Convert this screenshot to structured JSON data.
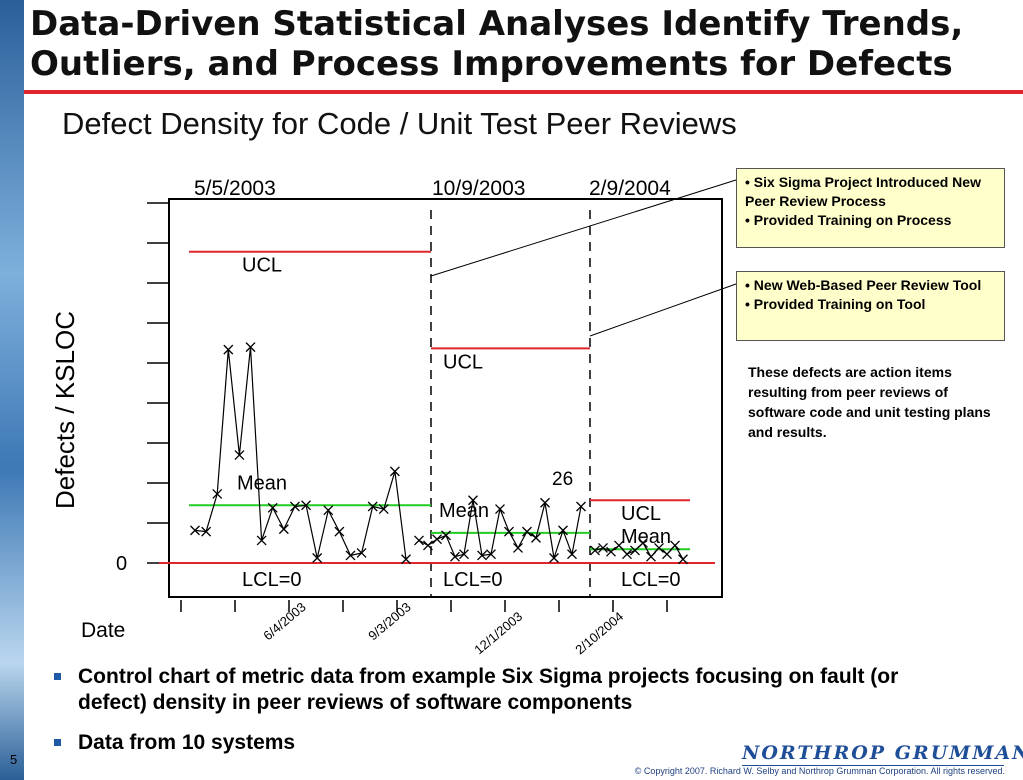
{
  "slide": {
    "title_line1": "Data-Driven Statistical Analyses Identify Trends,",
    "title_line2": "Outliers, and Process Improvements for Defects",
    "page_number": "5"
  },
  "chart_data": {
    "type": "line",
    "title": "Defect Density for Code / Unit Test Peer Reviews",
    "ylabel": "Defects / KSLOC",
    "xlabel": "Date",
    "y_tick_label": "0",
    "top_date_labels": [
      "5/5/2003",
      "10/9/2003",
      "2/9/2004"
    ],
    "x_tick_labels": [
      "6/4/2003",
      "9/3/2003",
      "12/1/2003",
      "2/10/2004"
    ],
    "ylim": [
      0,
      2.9
    ],
    "grid": false,
    "phases": [
      {
        "name": "",
        "ucl": 2.48,
        "mean": 0.46,
        "lcl": 0,
        "ucl_label": "UCL",
        "mean_label": "Mean",
        "lcl_label": "LCL=0",
        "values": [
          0.26,
          0.25,
          0.55,
          1.7,
          0.86,
          1.72,
          0.18,
          0.44,
          0.27,
          0.45,
          0.46,
          0.04,
          0.42,
          0.25,
          0.06,
          0.08,
          0.45,
          0.43,
          0.73,
          0.03
        ]
      },
      {
        "name": "",
        "ucl": 1.71,
        "mean": 0.24,
        "lcl": 0,
        "ucl_label": "UCL",
        "mean_label": "Mean",
        "lcl_label": "LCL=0",
        "values": [
          0.18,
          0.14,
          0.19,
          0.22,
          0.05,
          0.07,
          0.5,
          0.06,
          0.07,
          0.43,
          0.25,
          0.12,
          0.25,
          0.2,
          0.48,
          0.04,
          0.26,
          0.07,
          0.45
        ]
      },
      {
        "name": "",
        "ucl": 0.5,
        "mean": 0.11,
        "lcl": 0,
        "ucl_label": "UCL",
        "mean_label": "Mean",
        "lcl_label": "LCL=0",
        "values": [
          0.1,
          0.12,
          0.09,
          0.14,
          0.07,
          0.1,
          0.16,
          0.05,
          0.12,
          0.07,
          0.14,
          0.03
        ]
      }
    ],
    "annotation": "26",
    "colors": {
      "ucl": "#e0262c",
      "lcl": "#e0262c",
      "mean": "#22cc22",
      "data": "#000000"
    }
  },
  "callouts": {
    "box1": [
      "• Six Sigma Project Introduced New Peer Review Process",
      "• Provided Training on Process"
    ],
    "box2": [
      "• New Web-Based Peer Review Tool",
      "• Provided Training on Tool"
    ],
    "note": "These defects are action items resulting from peer reviews of software code and unit testing plans and results."
  },
  "bullets": [
    "Control chart of metric data from example Six Sigma projects focusing on fault (or defect) density in peer reviews of software components",
    "Data from 10 systems"
  ],
  "footer": {
    "logo": "NORTHROP GRUMMAN",
    "copyright": "© Copyright 2007. Richard W. Selby and Northrop Grumman Corporation. All rights reserved."
  }
}
